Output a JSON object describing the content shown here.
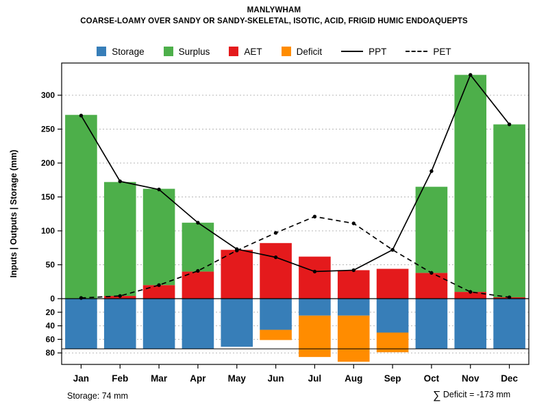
{
  "header": {
    "title": "MANLYWHAM",
    "subtitle": "COARSE-LOAMY OVER SANDY OR SANDY-SKELETAL, ISOTIC, ACID, FRIGID HUMIC ENDOAQUEPTS"
  },
  "legend": {
    "items": [
      {
        "key": "storage",
        "label": "Storage",
        "type": "box"
      },
      {
        "key": "surplus",
        "label": "Surplus",
        "type": "box"
      },
      {
        "key": "aet",
        "label": "AET",
        "type": "box"
      },
      {
        "key": "deficit",
        "label": "Deficit",
        "type": "box"
      },
      {
        "key": "ppt",
        "label": "PPT",
        "type": "line-solid"
      },
      {
        "key": "pet",
        "label": "PET",
        "type": "line-dashed"
      }
    ]
  },
  "chart_data": {
    "type": "bar",
    "subtype": "water-balance stacked bars with PPT/PET lines",
    "title": "MANLYWHAM",
    "xlabel": "",
    "ylabel": "Inputs | Outputs | Storage   (mm)",
    "months": [
      "Jan",
      "Feb",
      "Mar",
      "Apr",
      "May",
      "Jun",
      "Jul",
      "Aug",
      "Sep",
      "Oct",
      "Nov",
      "Dec"
    ],
    "series": [
      {
        "name": "AET",
        "values": [
          0,
          4,
          20,
          40,
          72,
          82,
          62,
          42,
          44,
          38,
          10,
          2
        ]
      },
      {
        "name": "Surplus",
        "values": [
          271,
          168,
          142,
          72,
          0,
          0,
          0,
          0,
          0,
          127,
          320,
          255
        ]
      },
      {
        "name": "Storage_depth_below_axis",
        "values": [
          74,
          74,
          74,
          74,
          71,
          46,
          25,
          25,
          50,
          74,
          74,
          74
        ]
      },
      {
        "name": "Deficit_below_axis",
        "values": [
          0,
          0,
          0,
          0,
          0,
          15,
          61,
          68,
          29,
          0,
          0,
          0
        ]
      },
      {
        "name": "PPT",
        "values": [
          270,
          173,
          161,
          112,
          73,
          61,
          40,
          42,
          72,
          188,
          330,
          257
        ]
      },
      {
        "name": "PET",
        "values": [
          1,
          4,
          20,
          41,
          71,
          97,
          121,
          111,
          72,
          38,
          10,
          2
        ]
      }
    ],
    "y_ticks_positive": [
      0,
      50,
      100,
      150,
      200,
      250,
      300
    ],
    "y_ticks_negative": [
      20,
      40,
      60,
      80
    ],
    "ylim": [
      -101,
      348
    ],
    "storage_line": 74,
    "grid": "dotted horizontal",
    "legend_position": "top",
    "colors": {
      "storage": "#377EB8",
      "surplus": "#4DAF4A",
      "aet": "#E41A1C",
      "deficit": "#FF8C00",
      "ppt": "#000000",
      "pet": "#000000",
      "grid": "#B5B5B5"
    }
  },
  "footer": {
    "storage_note": "Storage: 74 mm",
    "deficit_sigma": "∑",
    "deficit_note": " Deficit = -173 mm"
  }
}
